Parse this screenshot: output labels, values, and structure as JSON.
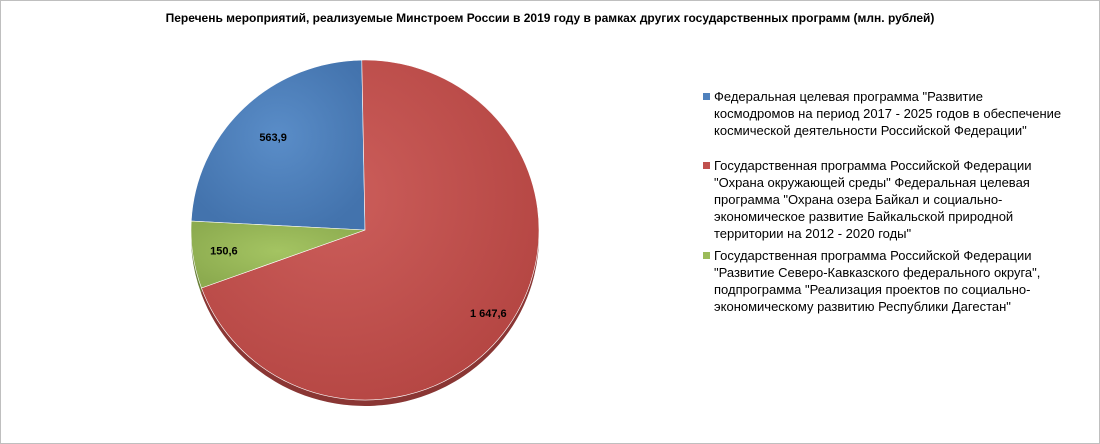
{
  "chart_data": {
    "type": "pie",
    "title": "Перечень мероприятий, реализуемые Минстроем России в 2019 году в рамках других государственных программ (млн. рублей)",
    "slices": [
      {
        "name": "Федеральная целевая программа \"Развитие космодромов на период 2017 - 2025 годов в обеспечение космической деятельности Российской Федерации\"",
        "value": 563.9,
        "label": "563,9",
        "color": "#4f81bd"
      },
      {
        "name": "Государственная программа Российской Федерации \"Охрана окружающей среды\" Федеральная целевая программа \"Охрана озера Байкал и социально-экономическое развитие Байкальской природной территории на 2012 - 2020 годы\"",
        "value": 1647.6,
        "label": "1 647,6",
        "color": "#c0504d"
      },
      {
        "name": "Государственная программа Российской Федерации \"Развитие Северо-Кавказского федерального округа\", подпрограмма \"Реализация проектов по социально-экономическому развитию Республики Дагестан\"",
        "value": 150.6,
        "label": "150,6",
        "color": "#9bbb59"
      }
    ],
    "legend_position": "right"
  }
}
